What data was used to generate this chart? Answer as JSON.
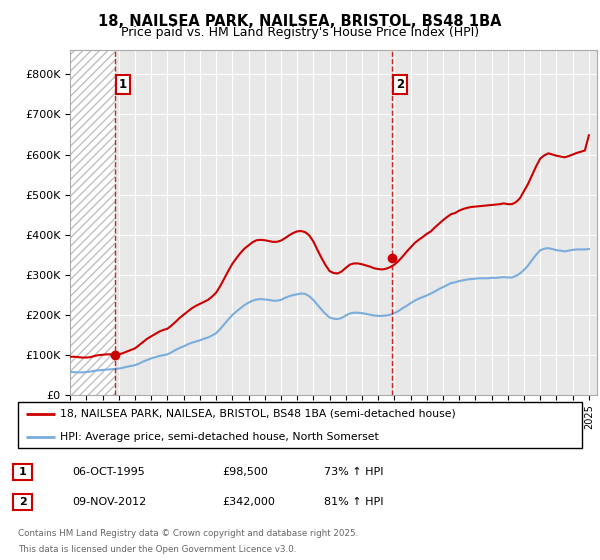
{
  "title_line1": "18, NAILSEA PARK, NAILSEA, BRISTOL, BS48 1BA",
  "title_line2": "Price paid vs. HM Land Registry's House Price Index (HPI)",
  "title_fontsize": 10.5,
  "subtitle_fontsize": 9,
  "xlim_start": 1993.0,
  "xlim_end": 2025.5,
  "ylim_min": 0,
  "ylim_max": 860000,
  "plot_bg_color": "#e8e8e8",
  "grid_color": "#ffffff",
  "red_color": "#cc0000",
  "blue_color": "#7aaddb",
  "purchase1_year": 1995.76,
  "purchase1_price": 98500,
  "purchase2_year": 2012.86,
  "purchase2_price": 342000,
  "annotation1_label": "1",
  "annotation2_label": "2",
  "legend_line1": "18, NAILSEA PARK, NAILSEA, BRISTOL, BS48 1BA (semi-detached house)",
  "legend_line2": "HPI: Average price, semi-detached house, North Somerset",
  "table_row1": [
    "1",
    "06-OCT-1995",
    "£98,500",
    "73% ↑ HPI"
  ],
  "table_row2": [
    "2",
    "09-NOV-2012",
    "£342,000",
    "81% ↑ HPI"
  ],
  "footer_line1": "Contains HM Land Registry data © Crown copyright and database right 2025.",
  "footer_line2": "This data is licensed under the Open Government Licence v3.0.",
  "yticks": [
    0,
    100000,
    200000,
    300000,
    400000,
    500000,
    600000,
    700000,
    800000
  ],
  "ytick_labels": [
    "£0",
    "£100K",
    "£200K",
    "£300K",
    "£400K",
    "£500K",
    "£600K",
    "£700K",
    "£800K"
  ],
  "hpi_blue_data": {
    "years": [
      1993.0,
      1993.25,
      1993.5,
      1993.75,
      1994.0,
      1994.25,
      1994.5,
      1994.75,
      1995.0,
      1995.25,
      1995.5,
      1995.75,
      1996.0,
      1996.25,
      1996.5,
      1996.75,
      1997.0,
      1997.25,
      1997.5,
      1997.75,
      1998.0,
      1998.25,
      1998.5,
      1998.75,
      1999.0,
      1999.25,
      1999.5,
      1999.75,
      2000.0,
      2000.25,
      2000.5,
      2000.75,
      2001.0,
      2001.25,
      2001.5,
      2001.75,
      2002.0,
      2002.25,
      2002.5,
      2002.75,
      2003.0,
      2003.25,
      2003.5,
      2003.75,
      2004.0,
      2004.25,
      2004.5,
      2004.75,
      2005.0,
      2005.25,
      2005.5,
      2005.75,
      2006.0,
      2006.25,
      2006.5,
      2006.75,
      2007.0,
      2007.25,
      2007.5,
      2007.75,
      2008.0,
      2008.25,
      2008.5,
      2008.75,
      2009.0,
      2009.25,
      2009.5,
      2009.75,
      2010.0,
      2010.25,
      2010.5,
      2010.75,
      2011.0,
      2011.25,
      2011.5,
      2011.75,
      2012.0,
      2012.25,
      2012.5,
      2012.75,
      2013.0,
      2013.25,
      2013.5,
      2013.75,
      2014.0,
      2014.25,
      2014.5,
      2014.75,
      2015.0,
      2015.25,
      2015.5,
      2015.75,
      2016.0,
      2016.25,
      2016.5,
      2016.75,
      2017.0,
      2017.25,
      2017.5,
      2017.75,
      2018.0,
      2018.25,
      2018.5,
      2018.75,
      2019.0,
      2019.25,
      2019.5,
      2019.75,
      2020.0,
      2020.25,
      2020.5,
      2020.75,
      2021.0,
      2021.25,
      2021.5,
      2021.75,
      2022.0,
      2022.25,
      2022.5,
      2022.75,
      2023.0,
      2023.25,
      2023.5,
      2023.75,
      2024.0,
      2024.25,
      2024.5,
      2024.75,
      2025.0
    ],
    "values": [
      57000,
      56500,
      56000,
      56000,
      57000,
      58000,
      60000,
      61000,
      62000,
      63000,
      63500,
      64500,
      65500,
      67500,
      70000,
      72000,
      74000,
      78000,
      83000,
      87000,
      91000,
      94000,
      97000,
      99000,
      101000,
      106000,
      112000,
      117000,
      121000,
      126000,
      130000,
      133000,
      136000,
      140000,
      143000,
      148000,
      154000,
      164000,
      176000,
      188000,
      199000,
      208000,
      216000,
      224000,
      230000,
      235000,
      238000,
      239000,
      238000,
      237000,
      235000,
      235000,
      237000,
      242000,
      246000,
      249000,
      251000,
      253000,
      252000,
      246000,
      237000,
      225000,
      213000,
      202000,
      193000,
      190000,
      189000,
      192000,
      198000,
      203000,
      205000,
      205000,
      204000,
      202000,
      200000,
      198000,
      197000,
      197000,
      198000,
      200000,
      204000,
      209000,
      216000,
      222000,
      229000,
      235000,
      240000,
      244000,
      248000,
      253000,
      258000,
      264000,
      269000,
      274000,
      279000,
      281000,
      284000,
      286000,
      288000,
      289000,
      290000,
      291000,
      291000,
      291000,
      292000,
      292000,
      293000,
      294000,
      293000,
      293000,
      297000,
      303000,
      312000,
      323000,
      337000,
      350000,
      361000,
      365000,
      366000,
      364000,
      361000,
      360000,
      358000,
      360000,
      362000,
      363000,
      363000,
      363000,
      364000
    ]
  },
  "hpi_red_data": {
    "years": [
      1993.0,
      1993.25,
      1993.5,
      1993.75,
      1994.0,
      1994.25,
      1994.5,
      1994.75,
      1995.0,
      1995.25,
      1995.5,
      1995.75,
      1996.0,
      1996.25,
      1996.5,
      1996.75,
      1997.0,
      1997.25,
      1997.5,
      1997.75,
      1998.0,
      1998.25,
      1998.5,
      1998.75,
      1999.0,
      1999.25,
      1999.5,
      1999.75,
      2000.0,
      2000.25,
      2000.5,
      2000.75,
      2001.0,
      2001.25,
      2001.5,
      2001.75,
      2002.0,
      2002.25,
      2002.5,
      2002.75,
      2003.0,
      2003.25,
      2003.5,
      2003.75,
      2004.0,
      2004.25,
      2004.5,
      2004.75,
      2005.0,
      2005.25,
      2005.5,
      2005.75,
      2006.0,
      2006.25,
      2006.5,
      2006.75,
      2007.0,
      2007.25,
      2007.5,
      2007.75,
      2008.0,
      2008.25,
      2008.5,
      2008.75,
      2009.0,
      2009.25,
      2009.5,
      2009.75,
      2010.0,
      2010.25,
      2010.5,
      2010.75,
      2011.0,
      2011.25,
      2011.5,
      2011.75,
      2012.0,
      2012.25,
      2012.5,
      2012.75,
      2013.0,
      2013.25,
      2013.5,
      2013.75,
      2014.0,
      2014.25,
      2014.5,
      2014.75,
      2015.0,
      2015.25,
      2015.5,
      2015.75,
      2016.0,
      2016.25,
      2016.5,
      2016.75,
      2017.0,
      2017.25,
      2017.5,
      2017.75,
      2018.0,
      2018.25,
      2018.5,
      2018.75,
      2019.0,
      2019.25,
      2019.5,
      2019.75,
      2020.0,
      2020.25,
      2020.5,
      2020.75,
      2021.0,
      2021.25,
      2021.5,
      2021.75,
      2022.0,
      2022.25,
      2022.5,
      2022.75,
      2023.0,
      2023.25,
      2023.5,
      2023.75,
      2024.0,
      2024.25,
      2024.5,
      2024.75,
      2025.0
    ],
    "values": [
      95000,
      95000,
      94000,
      93000,
      93000,
      94000,
      97000,
      99000,
      100000,
      101000,
      101000,
      100000,
      101000,
      104000,
      108000,
      112000,
      116000,
      124000,
      132000,
      140000,
      146000,
      152000,
      158000,
      162000,
      165000,
      173000,
      182000,
      192000,
      200000,
      208000,
      216000,
      222000,
      227000,
      232000,
      237000,
      245000,
      255000,
      271000,
      290000,
      309000,
      327000,
      341000,
      354000,
      365000,
      373000,
      381000,
      386000,
      387000,
      386000,
      384000,
      382000,
      382000,
      385000,
      391000,
      398000,
      404000,
      408000,
      409000,
      406000,
      398000,
      383000,
      362000,
      342000,
      324000,
      309000,
      304000,
      303000,
      308000,
      317000,
      325000,
      328000,
      328000,
      326000,
      323000,
      320000,
      316000,
      314000,
      313000,
      315000,
      319000,
      325000,
      334000,
      345000,
      357000,
      368000,
      379000,
      387000,
      394000,
      402000,
      408000,
      418000,
      427000,
      436000,
      444000,
      451000,
      454000,
      460000,
      464000,
      467000,
      469000,
      470000,
      471000,
      472000,
      473000,
      474000,
      475000,
      476000,
      478000,
      476000,
      476000,
      481000,
      491000,
      509000,
      527000,
      549000,
      571000,
      590000,
      598000,
      603000,
      600000,
      597000,
      595000,
      593000,
      596000,
      600000,
      604000,
      607000,
      610000,
      648000
    ]
  }
}
